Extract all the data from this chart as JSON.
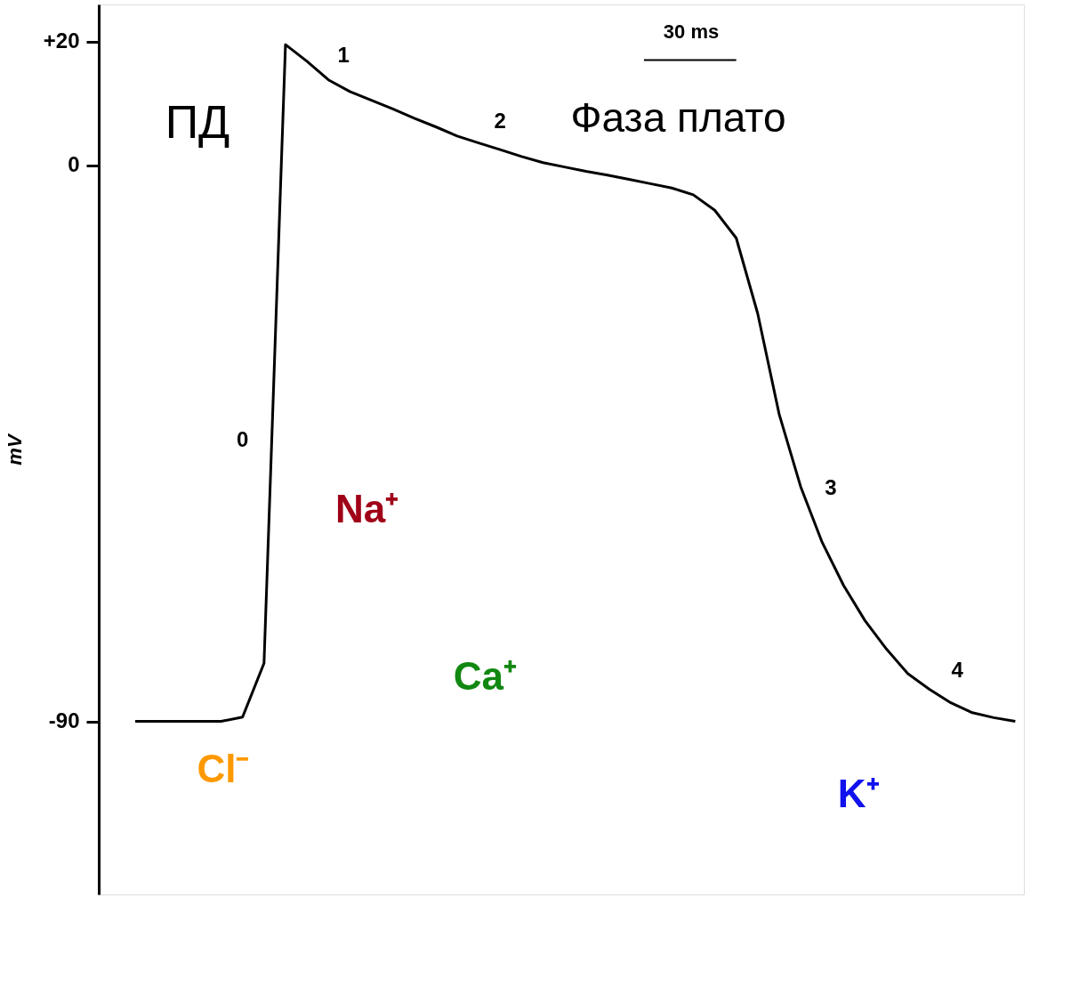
{
  "chart_data": {
    "type": "line",
    "ylabel": "mV",
    "categories": [
      null,
      null,
      null,
      null,
      null,
      null,
      null,
      null,
      null,
      null,
      null,
      null,
      null,
      null,
      null,
      null,
      null,
      null,
      null,
      null,
      null,
      null,
      null,
      null,
      null,
      null,
      null,
      null,
      null,
      null,
      null,
      null,
      null,
      null,
      null,
      null,
      null,
      null,
      null,
      null,
      null,
      null
    ],
    "series": [
      {
        "color": "#000000",
        "values": [
          -90,
          -90,
          -90,
          -90,
          -90,
          -89.3,
          -80.6,
          19.5,
          16.8,
          13.8,
          11.9,
          10.5,
          9.1,
          7.6,
          6.2,
          4.7,
          3.6,
          2.5,
          1.4,
          0.4,
          -0.3,
          -1,
          -1.6,
          -2.3,
          -3,
          -3.7,
          -4.8,
          -7.3,
          -11.8,
          -24,
          -40.3,
          -52,
          -61,
          -68,
          -73.7,
          -78.3,
          -82.3,
          -84.8,
          -87,
          -88.6,
          -89.4,
          -90
        ]
      }
    ],
    "ylim": [
      -118,
      26
    ],
    "yticks": [
      {
        "value": 20,
        "label": "+20"
      },
      {
        "value": 0,
        "label": "0"
      },
      {
        "value": -90,
        "label": "-90"
      }
    ],
    "tick_labels": "y",
    "grid": false,
    "marker": "none",
    "line_style": "solid",
    "annotations": [
      "0",
      "1",
      "2",
      "3",
      "4",
      "ПД",
      "Фаза плато",
      "30 ms",
      "Na⁺",
      "Ca⁺",
      "Cl⁻",
      "K⁺"
    ]
  }
}
